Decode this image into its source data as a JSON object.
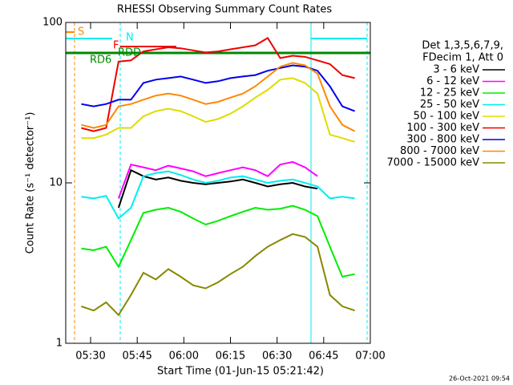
{
  "chart_data": {
    "type": "line",
    "title": "RHESSI Observing Summary Count Rates",
    "xlabel": "Start Time (01-Jun-15 05:21:42)",
    "ylabel": "Count Rate (s⁻¹ detector⁻¹)",
    "log_y": true,
    "ylim": [
      1,
      100
    ],
    "yticks": [
      1,
      10,
      100
    ],
    "xlim": [
      322,
      420
    ],
    "xticks": [
      {
        "value": 330,
        "label": "05:30"
      },
      {
        "value": 345,
        "label": "05:45"
      },
      {
        "value": 360,
        "label": "06:00"
      },
      {
        "value": 375,
        "label": "06:15"
      },
      {
        "value": 390,
        "label": "06:30"
      },
      {
        "value": 405,
        "label": "06:45"
      },
      {
        "value": 420,
        "label": "07:00"
      }
    ],
    "legend_title": [
      "Det 1,3,5,6,7,9,",
      "FDecim 1, Att 0"
    ],
    "annotations": [
      "S",
      "N",
      "F",
      "RD6",
      "RDD"
    ],
    "footer": "26-Oct-2021 09:54",
    "x": [
      327,
      331,
      335,
      339,
      343,
      347,
      351,
      355,
      359,
      363,
      367,
      371,
      375,
      379,
      383,
      387,
      391,
      395,
      399,
      403,
      407,
      411,
      415
    ],
    "series": [
      {
        "name": "3 - 6 keV",
        "color": "#000000",
        "values": [
          null,
          null,
          null,
          7,
          12,
          11,
          10.5,
          10.8,
          10.3,
          10,
          9.8,
          10,
          10.2,
          10.5,
          10,
          9.5,
          9.8,
          10,
          9.5,
          9.2,
          null,
          null,
          null
        ]
      },
      {
        "name": "6 - 12 keV",
        "color": "#ff00ff",
        "values": [
          null,
          null,
          null,
          8,
          13,
          12.5,
          12,
          12.8,
          12.3,
          11.8,
          11,
          11.5,
          12,
          12.5,
          12,
          11,
          13,
          13.5,
          12.5,
          11,
          null,
          null,
          null
        ]
      },
      {
        "name": "12 - 25 keV",
        "color": "#00ee00",
        "values": [
          3.9,
          3.8,
          4,
          3,
          4.4,
          6.5,
          6.8,
          7,
          6.6,
          6,
          5.5,
          5.8,
          6.2,
          6.6,
          7,
          6.8,
          6.9,
          7.2,
          6.8,
          6.2,
          4,
          2.6,
          2.7
        ]
      },
      {
        "name": "25 - 50 keV",
        "color": "#00eeee",
        "values": [
          8.2,
          8,
          8.3,
          6,
          7,
          11,
          11.5,
          11.8,
          11.2,
          10.5,
          10,
          10.3,
          10.8,
          11,
          10.5,
          10,
          10.3,
          10.5,
          10,
          9.5,
          8,
          8.2,
          8
        ]
      },
      {
        "name": "50 - 100 keV",
        "color": "#dddd00",
        "values": [
          19,
          19,
          20,
          22,
          22,
          26,
          28,
          29,
          28,
          26,
          24,
          25,
          27,
          30,
          34,
          38,
          44,
          45,
          42,
          36,
          20,
          19,
          18
        ]
      },
      {
        "name": "100 - 300 keV",
        "color": "#ee0000",
        "values": [
          22,
          21,
          22,
          57,
          58,
          66,
          68,
          70,
          69,
          67,
          65,
          66,
          68,
          70,
          72,
          80,
          60,
          62,
          61,
          58,
          55,
          47,
          45
        ]
      },
      {
        "name": "300 - 800 keV",
        "color": "#0000ee",
        "values": [
          31,
          30,
          31,
          33,
          33,
          42,
          44,
          45,
          46,
          44,
          42,
          43,
          45,
          46,
          47,
          50,
          52,
          54,
          53,
          50,
          40,
          30,
          28
        ]
      },
      {
        "name": "800 - 7000 keV",
        "color": "#ff8800",
        "values": [
          23,
          22,
          23,
          30,
          31,
          33,
          35,
          36,
          35,
          33,
          31,
          32,
          34,
          36,
          40,
          46,
          53,
          56,
          54,
          48,
          30,
          23,
          21
        ]
      },
      {
        "name": "7000 - 15000 keV",
        "color": "#888800",
        "values": [
          1.7,
          1.6,
          1.8,
          1.5,
          2,
          2.75,
          2.5,
          2.9,
          2.6,
          2.3,
          2.2,
          2.4,
          2.7,
          3,
          3.5,
          4,
          4.4,
          4.8,
          4.6,
          4,
          2,
          1.7,
          1.6
        ]
      }
    ]
  }
}
